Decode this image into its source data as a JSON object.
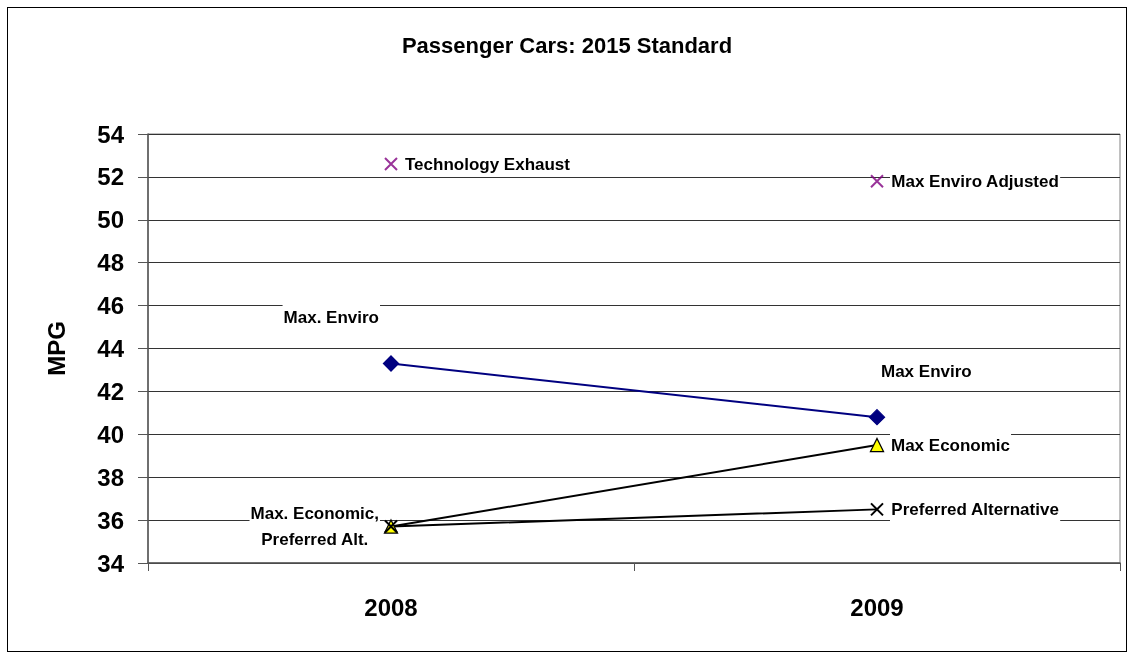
{
  "chart_data": {
    "type": "line",
    "title": "Passenger Cars: 2015 Standard",
    "ylabel": "MPG",
    "categories": [
      "2008",
      "2009"
    ],
    "series": [
      {
        "color": "#000080",
        "values": [
          43.3,
          40.8
        ],
        "marker": "diamond"
      },
      {
        "color": "#000000",
        "colors": [
          "#ffff00",
          "#ffff00"
        ],
        "values": [
          35.7,
          39.5
        ],
        "marker": "triangle"
      },
      {
        "color": "#000000",
        "values": [
          35.7,
          36.5
        ],
        "marker": "cross"
      },
      {
        "type": "scatter",
        "color": "#800080",
        "values": [
          52.6,
          51.8
        ],
        "marker": "cross"
      }
    ],
    "ylim": [
      34,
      54
    ],
    "yticks": [
      34,
      36,
      38,
      40,
      42,
      44,
      46,
      48,
      50,
      52,
      54
    ],
    "grid": "y",
    "line_style": "solid",
    "annotations": [
      {
        "text": "Technology Exhaust",
        "x": "2008",
        "y": 52.6
      },
      {
        "text": "Max. Enviro",
        "x": "2008",
        "y": 43.3
      },
      {
        "text": "Max. Economic,\nPreferred Alt.",
        "x": "2008",
        "y": 35.7
      },
      {
        "text": "Max Enviro Adjusted",
        "x": "2009",
        "y": 51.8
      },
      {
        "text": "Max Enviro",
        "x": "2009",
        "y": 40.8
      },
      {
        "text": "Max Economic",
        "x": "2009",
        "y": 39.5
      },
      {
        "text": "Preferred Alternative",
        "x": "2009",
        "y": 36.5
      }
    ]
  }
}
